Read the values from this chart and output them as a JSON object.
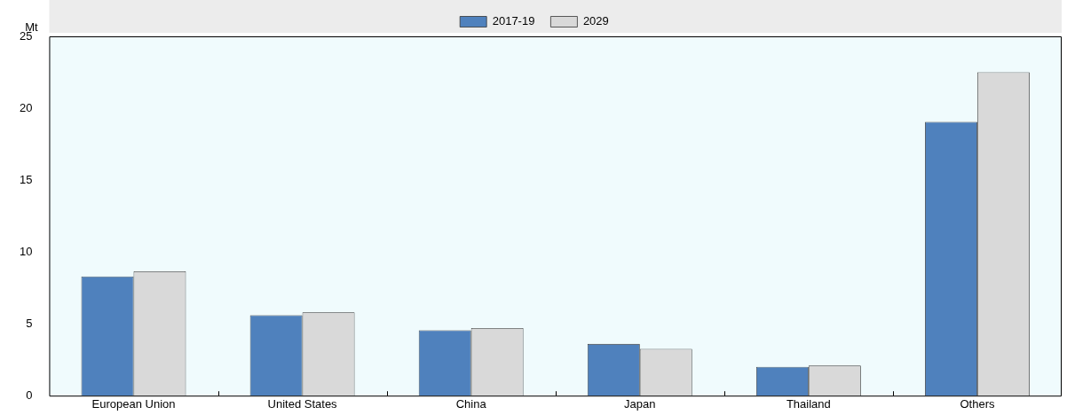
{
  "chart_data": {
    "type": "bar",
    "ylabel": "Mt",
    "categories": [
      "European Union",
      "United States",
      "China",
      "Japan",
      "Thailand",
      "Others"
    ],
    "series": [
      {
        "name": "2017-19",
        "color": "#4f81bd",
        "values": [
          8.3,
          5.6,
          4.55,
          3.6,
          2.0,
          19.05
        ]
      },
      {
        "name": "2029",
        "color": "#d9d9d9",
        "values": [
          8.65,
          5.8,
          4.7,
          3.25,
          2.1,
          22.5
        ]
      }
    ],
    "ylim": [
      0,
      25
    ],
    "yticks": [
      0,
      5,
      10,
      15,
      20,
      25
    ],
    "grid": false,
    "legend": "top"
  }
}
